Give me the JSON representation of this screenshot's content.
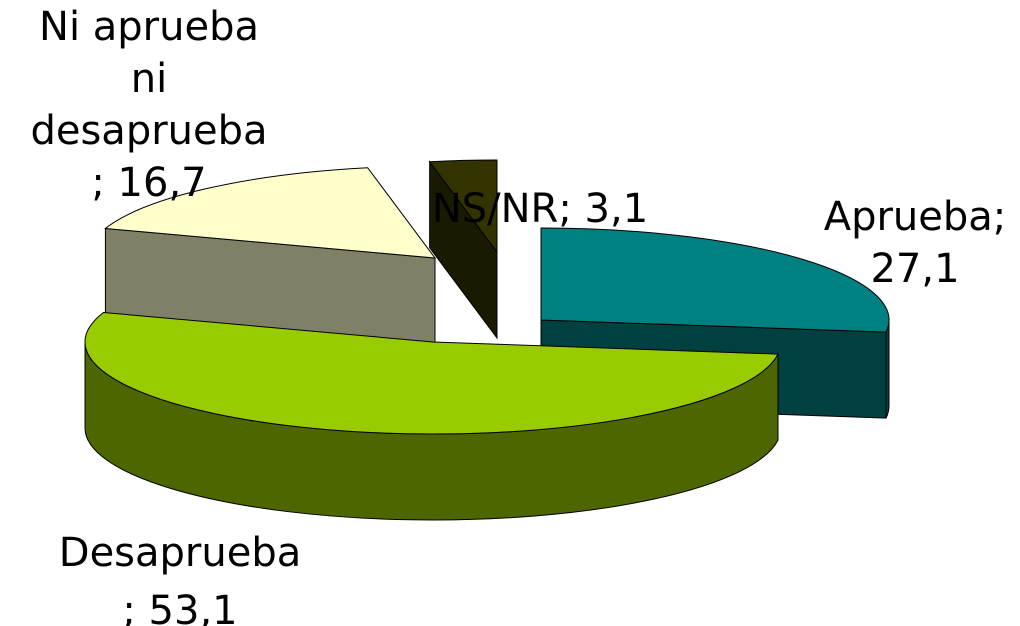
{
  "chart_data": {
    "type": "pie",
    "title": "",
    "slices": [
      {
        "label": "Aprueba",
        "value": 27.1,
        "top_color": "#008080",
        "side_color": "#004040",
        "display_lines": [
          "Aprueba;",
          "27,1"
        ]
      },
      {
        "label": "Desaprueba",
        "value": 53.1,
        "top_color": "#99cc00",
        "side_color": "#4d6600",
        "display_lines": [
          "Desaprueba",
          "; 53,1"
        ]
      },
      {
        "label": "Ni aprueba ni desaprueba",
        "value": 16.7,
        "top_color": "#ffffcc",
        "side_color": "#808066",
        "display_lines": [
          "Ni aprueba",
          "ni",
          "desaprueba",
          "; 16,7"
        ]
      },
      {
        "label": "NS/NR",
        "value": 3.1,
        "top_color": "#333300",
        "side_color": "#1a1a00",
        "display_lines": [
          "NS/NR; 3,1"
        ]
      }
    ],
    "style": "3d-exploded",
    "legend": "none"
  }
}
